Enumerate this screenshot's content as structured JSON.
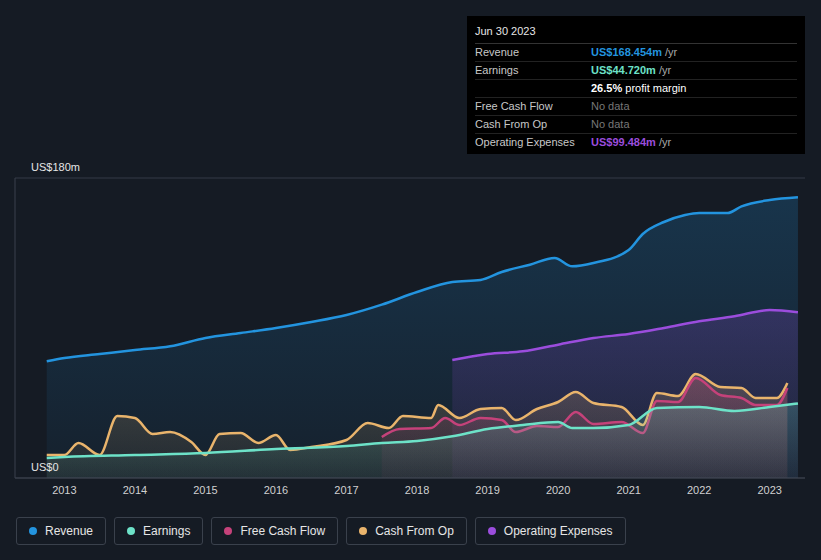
{
  "chart_data": {
    "type": "area",
    "grid": true,
    "legend": "bottom left",
    "xlim": [
      2012.3,
      2023.5
    ],
    "xticks": [
      2013,
      2014,
      2015,
      2016,
      2017,
      2018,
      2019,
      2020,
      2021,
      2022,
      2023
    ],
    "ylim": [
      0,
      180
    ],
    "yticks": [
      {
        "value": 0,
        "label": "US$0"
      },
      {
        "value": 180,
        "label": "US$180m"
      }
    ],
    "series": [
      {
        "name": "Revenue",
        "color": "#2394df",
        "x": [
          2012.75,
          2013,
          2013.5,
          2014,
          2014.5,
          2015,
          2015.5,
          2016,
          2016.5,
          2017,
          2017.5,
          2018,
          2018.5,
          2018.9,
          2019.2,
          2019.6,
          2019.95,
          2020.2,
          2020.5,
          2021,
          2021.2,
          2021.5,
          2021.8,
          2022,
          2022.4,
          2022.6,
          2023,
          2023.4
        ],
        "values": [
          70,
          72,
          74.4,
          76.8,
          79,
          84,
          87,
          90,
          93.6,
          97.8,
          104,
          111.6,
          117.6,
          118.8,
          123.6,
          128,
          132,
          127,
          129,
          136.8,
          146.4,
          153.6,
          157.8,
          159,
          159,
          163,
          166.8,
          168.454
        ]
      },
      {
        "name": "Earnings",
        "color": "#6de2c8",
        "x": [
          2012.75,
          2013,
          2014,
          2015,
          2016,
          2017,
          2017.5,
          2018,
          2018.5,
          2019,
          2019.5,
          2020,
          2020.2,
          2020.5,
          2021,
          2021.4,
          2022,
          2022.5,
          2023,
          2023.4
        ],
        "values": [
          12,
          12.6,
          13.8,
          15,
          17.4,
          19.2,
          21,
          22.2,
          25,
          29.4,
          31.8,
          33.6,
          30,
          30,
          31.8,
          42,
          42.6,
          40.2,
          42.6,
          44.72
        ]
      },
      {
        "name": "Free Cash Flow",
        "color": "#c5427a",
        "x": [
          2017.5,
          2017.75,
          2018.2,
          2018.4,
          2018.6,
          2018.9,
          2019.2,
          2019.4,
          2019.7,
          2020,
          2020.25,
          2020.5,
          2020.9,
          2021.2,
          2021.4,
          2021.7,
          2021.95,
          2022.3,
          2022.6,
          2022.8,
          2023.1,
          2023.25
        ],
        "values": [
          24.6,
          29.4,
          30,
          36,
          31.8,
          36,
          34.8,
          27.6,
          31.2,
          30.6,
          39.6,
          32.4,
          33.6,
          27,
          46.2,
          45.6,
          60,
          49.8,
          48,
          43.8,
          43.8,
          54
        ]
      },
      {
        "name": "Cash From Op",
        "color": "#e9b46c",
        "x": [
          2012.75,
          2013,
          2013.2,
          2013.5,
          2013.75,
          2014,
          2014.25,
          2014.5,
          2014.8,
          2015,
          2015.2,
          2015.5,
          2015.75,
          2016,
          2016.2,
          2016.5,
          2017,
          2017.3,
          2017.6,
          2017.8,
          2018.2,
          2018.3,
          2018.6,
          2018.9,
          2019.2,
          2019.4,
          2019.7,
          2020,
          2020.25,
          2020.5,
          2020.9,
          2021.2,
          2021.4,
          2021.7,
          2021.95,
          2022.3,
          2022.6,
          2022.8,
          2023.1,
          2023.25
        ],
        "values": [
          13.8,
          13.8,
          21,
          13.8,
          37.2,
          36,
          26.4,
          27.6,
          21.6,
          13.8,
          26.4,
          27,
          21,
          25.8,
          16.8,
          18.6,
          22.8,
          33,
          30,
          37.2,
          36,
          43.8,
          36,
          41.4,
          42,
          34.8,
          41.4,
          45.6,
          51.6,
          45,
          42.6,
          31.8,
          51,
          49.2,
          62.4,
          54.6,
          54,
          48,
          48,
          57
        ]
      },
      {
        "name": "Operating Expenses",
        "color": "#9b4ddd",
        "x": [
          2018.5,
          2019,
          2019.5,
          2020,
          2020.5,
          2021,
          2021.5,
          2022,
          2022.5,
          2023,
          2023.4
        ],
        "values": [
          70.8,
          74.4,
          76,
          80,
          84,
          86.4,
          90,
          94,
          97,
          100.8,
          99.484
        ]
      }
    ]
  },
  "info_box": {
    "date": "Jun 30 2023",
    "rows": [
      {
        "label": "Revenue",
        "value": "US$168.454m",
        "suffix": "/yr"
      },
      {
        "label": "Earnings",
        "value": "US$44.720m",
        "suffix": "/yr"
      },
      {
        "value": "26.5%",
        "suffix": "profit margin"
      },
      {
        "label": "Free Cash Flow",
        "value": "No data"
      },
      {
        "label": "Cash From Op",
        "value": "No data"
      },
      {
        "label": "Operating Expenses",
        "value": "US$99.484m",
        "suffix": "/yr"
      }
    ]
  }
}
